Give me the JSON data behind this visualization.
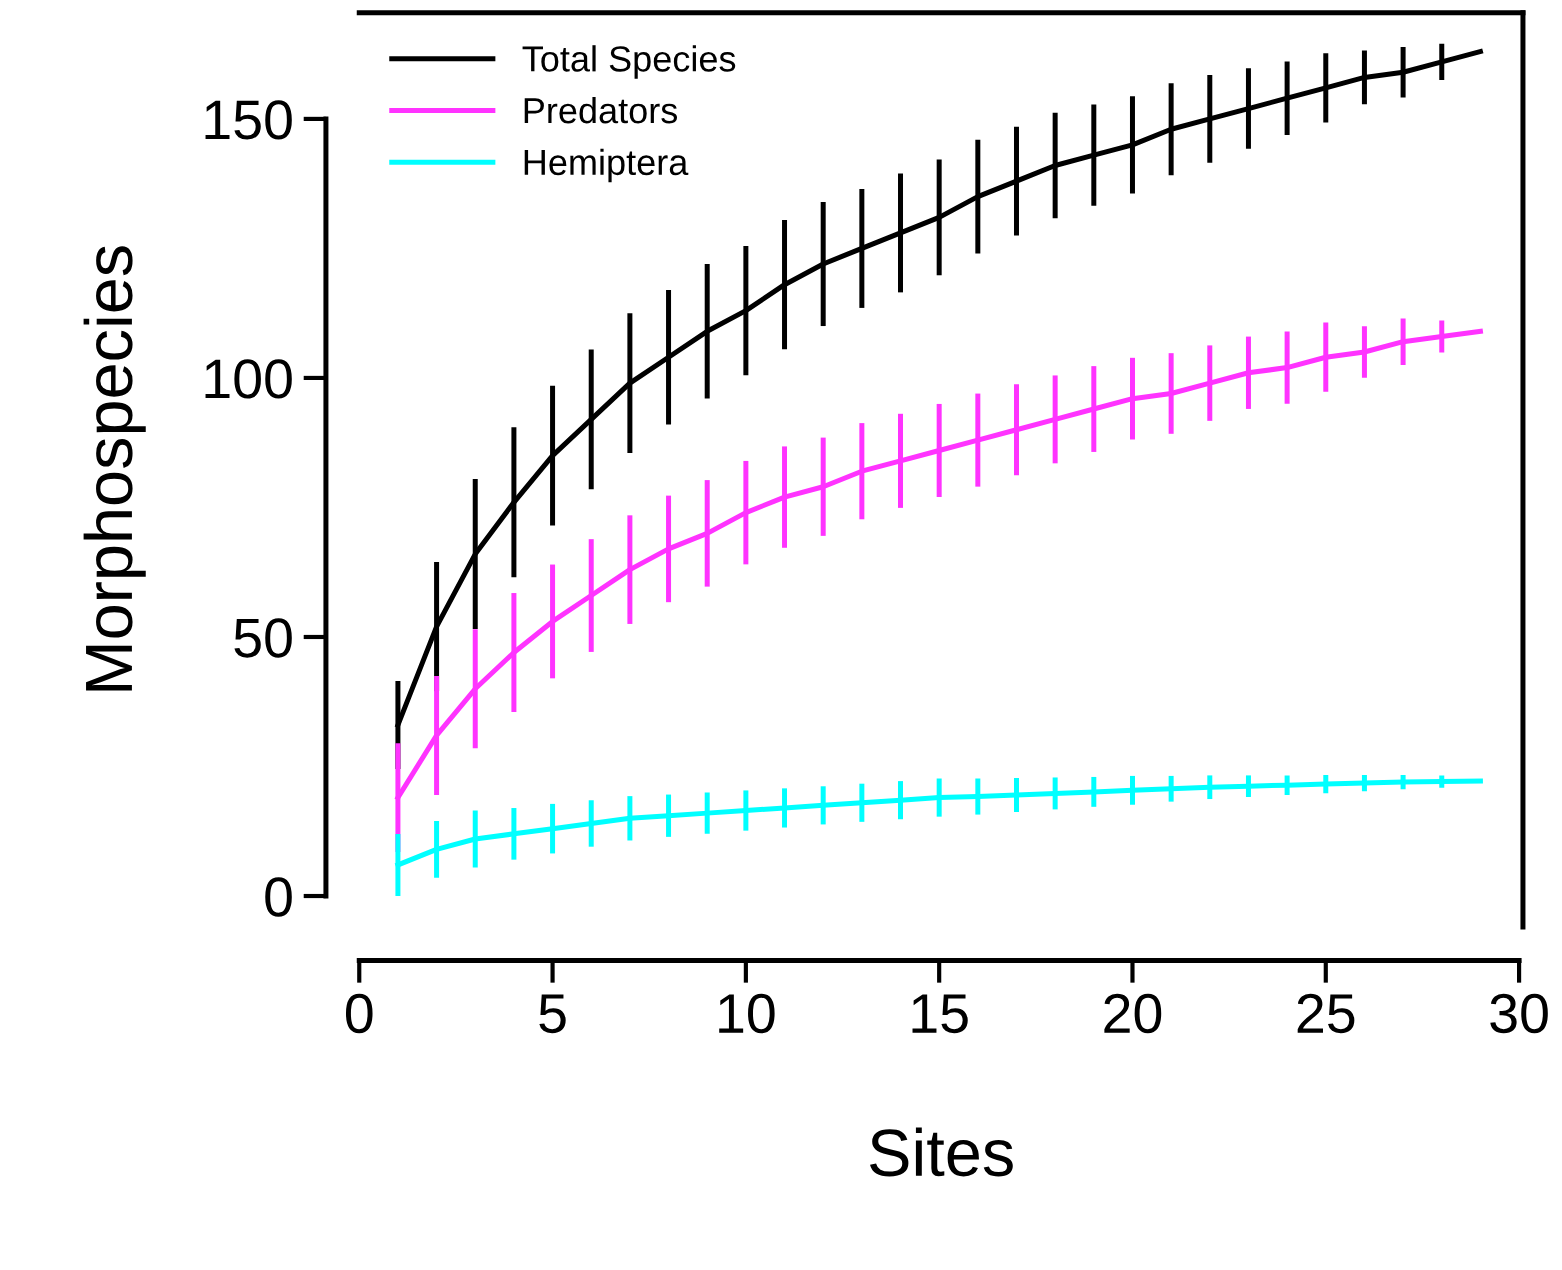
{
  "chart_data": {
    "type": "line",
    "xlabel": "Sites",
    "ylabel": "Morphospecies",
    "x": [
      1,
      2,
      3,
      4,
      5,
      6,
      7,
      8,
      9,
      10,
      11,
      12,
      13,
      14,
      15,
      16,
      17,
      18,
      19,
      20,
      21,
      22,
      23,
      24,
      25,
      26,
      27,
      28,
      29
    ],
    "series": [
      {
        "name": "Total Species",
        "color": "#000000",
        "values": [
          33,
          52,
          66,
          76,
          85,
          92,
          99,
          104,
          109,
          113,
          118,
          122,
          125,
          128,
          131,
          135,
          138,
          141,
          143,
          145,
          148,
          150,
          152,
          154,
          156,
          158,
          159,
          161,
          163
        ],
        "errors": [
          8,
          12,
          14,
          14,
          13,
          13,
          13,
          12.5,
          12.5,
          12,
          12,
          11.5,
          11,
          11,
          10.7,
          10.5,
          10,
          9.7,
          9.3,
          8.9,
          8.4,
          8,
          7.3,
          6.6,
          6.2,
          4.7,
          4.4,
          3,
          null
        ]
      },
      {
        "name": "Predators",
        "color": "#ff33ff",
        "values": [
          19,
          31,
          40,
          47,
          53,
          58,
          63,
          67,
          70,
          74,
          77,
          79,
          82,
          84,
          86,
          88,
          90,
          92,
          94,
          96,
          97,
          99,
          101,
          102,
          104,
          105,
          107,
          108,
          109
        ],
        "errors": [
          10,
          11,
          11,
          11,
          10.5,
          10.4,
          10,
          9.8,
          9.8,
          9.5,
          9.3,
          9,
          8.8,
          8.6,
          8.5,
          8.5,
          8.3,
          8,
          7.8,
          7.4,
          7.3,
          6.8,
          6.5,
          6.5,
          6.2,
          4.5,
          4,
          2.6,
          null
        ]
      },
      {
        "name": "Hemiptera",
        "color": "#00ffff",
        "values": [
          6,
          9,
          11,
          12,
          13,
          14,
          15,
          15.5,
          16,
          16.5,
          17,
          17.5,
          18,
          18.5,
          19,
          19.2,
          19.5,
          19.8,
          20.1,
          20.4,
          20.7,
          21,
          21.2,
          21.4,
          21.6,
          21.8,
          22,
          22.1,
          22.2
        ],
        "errors": [
          5.5,
          5,
          5,
          4.5,
          4.3,
          4,
          3.8,
          3.6,
          3.5,
          3.4,
          3.3,
          3.2,
          3.2,
          3.2,
          3.2,
          3,
          2.8,
          2.6,
          2.4,
          2.3,
          2,
          1.8,
          1.6,
          1.4,
          1.3,
          1.1,
          0.9,
          0.7,
          null
        ]
      }
    ],
    "xlim": [
      0,
      30.1
    ],
    "ylim": [
      -6,
      170.5
    ],
    "xticks": [
      0,
      5,
      10,
      15,
      20,
      25,
      30
    ],
    "yticks": [
      0,
      50,
      100,
      150
    ],
    "legend": "top left",
    "grid": false,
    "marker": "none",
    "line_style": "solid"
  }
}
